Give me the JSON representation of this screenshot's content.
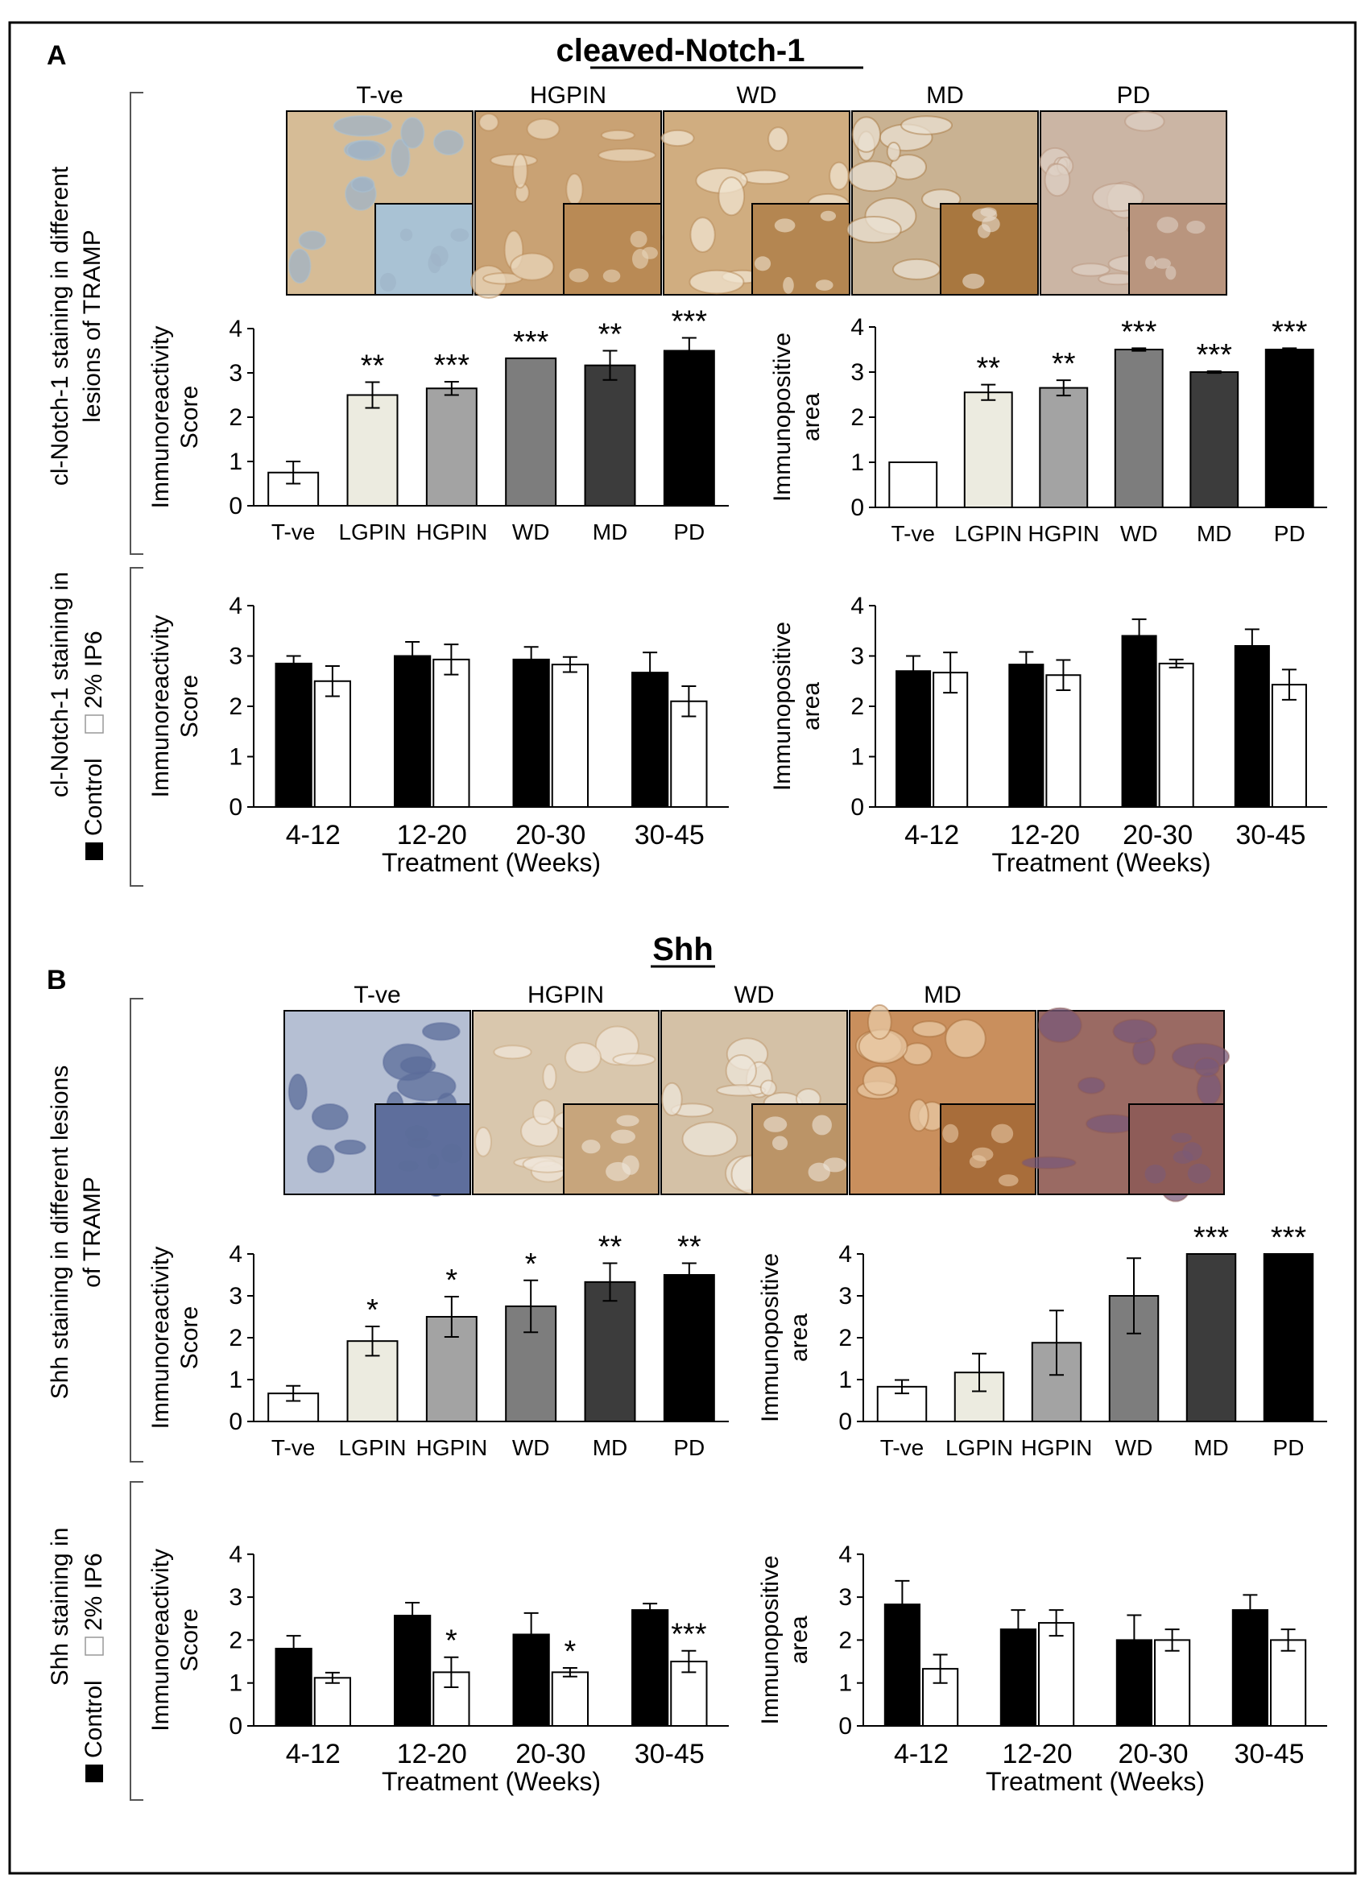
{
  "panel_a": {
    "letter": "A",
    "title": "cleaved-Notch-1",
    "side_label_top": [
      "cl-Notch-1 staining in different",
      "lesions of TRAMP"
    ],
    "side_label_bottom": [
      "cl-Notch-1 staining in",
      "Control",
      "2% IP6"
    ],
    "micrographs": [
      {
        "label": "T-ve",
        "base": "#d6bc96",
        "accent": "#9fb3c6",
        "inset": "#a9c2d4"
      },
      {
        "label": "HGPIN",
        "base": "#c9a274",
        "accent": "#e8d6bb",
        "inset": "#b98a55"
      },
      {
        "label": "WD",
        "base": "#d0ad80",
        "accent": "#f0e4d0",
        "inset": "#b48651"
      },
      {
        "label": "MD",
        "base": "#c9b292",
        "accent": "#e9e0d2",
        "inset": "#a8773f"
      },
      {
        "label": "PD",
        "base": "#cbb5a4",
        "accent": "#ddd0c4",
        "inset": "#b9957e"
      }
    ]
  },
  "panel_b": {
    "letter": "B",
    "title": "Shh",
    "side_label_top": [
      "Shh staining in different lesions",
      "of TRAMP"
    ],
    "side_label_bottom": [
      "Shh staining in",
      "Control",
      "2% IP6"
    ],
    "micrographs": [
      {
        "label": "T-ve",
        "base": "#b5bfd3",
        "accent": "#5b6c9a",
        "inset": "#5e6e9c"
      },
      {
        "label": "HGPIN",
        "base": "#d9c7ad",
        "accent": "#efe6da",
        "inset": "#c7a57c"
      },
      {
        "label": "WD",
        "base": "#d4c1a6",
        "accent": "#eee6da",
        "inset": "#bb9467"
      },
      {
        "label": "MD",
        "base": "#c98f5d",
        "accent": "#e8c9a6",
        "inset": "#a86d3a"
      },
      {
        "label": "",
        "base": "#9a6a63",
        "accent": "#7a5a78",
        "inset": "#8e5c58"
      }
    ]
  },
  "chart_data": [
    {
      "type": "bar",
      "id": "A1",
      "ylabel": [
        "Immunoreactivity",
        "Score"
      ],
      "categories": [
        "T-ve",
        "LGPIN",
        "HGPIN",
        "WD",
        "MD",
        "PD"
      ],
      "values": [
        0.75,
        2.5,
        2.65,
        3.33,
        3.17,
        3.5
      ],
      "errors": [
        0.25,
        0.29,
        0.15,
        0.0,
        0.33,
        0.29
      ],
      "significance": [
        "",
        "**",
        "***",
        "***",
        "**",
        "***"
      ],
      "colors": [
        "#ffffff",
        "#ecebe0",
        "#a3a3a3",
        "#7d7d7d",
        "#3c3c3c",
        "#000000"
      ],
      "ylim": [
        0,
        4
      ],
      "yticks": [
        "0",
        "1",
        "2",
        "3",
        "4"
      ]
    },
    {
      "type": "bar",
      "id": "A2",
      "ylabel": [
        "Immunopositive",
        "area"
      ],
      "categories": [
        "T-ve",
        "LGPIN",
        "HGPIN",
        "WD",
        "MD",
        "PD"
      ],
      "values": [
        1.0,
        2.55,
        2.65,
        3.5,
        3.0,
        3.5
      ],
      "errors": [
        0.0,
        0.17,
        0.17,
        0.03,
        0.02,
        0.03
      ],
      "significance": [
        "",
        "**",
        "**",
        "***",
        "***",
        "***"
      ],
      "colors": [
        "#ffffff",
        "#ecebe0",
        "#a3a3a3",
        "#7d7d7d",
        "#3c3c3c",
        "#000000"
      ],
      "ylim": [
        0,
        4
      ],
      "yticks": [
        "0",
        "1",
        "2",
        "3",
        "4"
      ]
    },
    {
      "type": "bar",
      "id": "A3",
      "ylabel": [
        "Immunoreactivity",
        "Score"
      ],
      "xlabel": "Treatment (Weeks)",
      "categories": [
        "4-12",
        "12-20",
        "20-30",
        "30-45"
      ],
      "series": [
        {
          "name": "Control",
          "color": "#000000",
          "values": [
            2.85,
            3.0,
            2.93,
            2.67
          ],
          "errors": [
            0.15,
            0.28,
            0.25,
            0.4
          ],
          "significance": [
            "",
            "",
            "",
            ""
          ]
        },
        {
          "name": "2% IP6",
          "color": "#ffffff",
          "values": [
            2.5,
            2.93,
            2.83,
            2.1
          ],
          "errors": [
            0.3,
            0.3,
            0.15,
            0.3
          ],
          "significance": [
            "",
            "",
            "",
            ""
          ]
        }
      ],
      "ylim": [
        0,
        4
      ],
      "yticks": [
        "0",
        "1",
        "2",
        "3",
        "4"
      ]
    },
    {
      "type": "bar",
      "id": "A4",
      "ylabel": [
        "Immunopositive",
        "area"
      ],
      "xlabel": "Treatment (Weeks)",
      "categories": [
        "4-12",
        "12-20",
        "20-30",
        "30-45"
      ],
      "series": [
        {
          "name": "Control",
          "color": "#000000",
          "values": [
            2.7,
            2.83,
            3.4,
            3.2
          ],
          "errors": [
            0.3,
            0.25,
            0.33,
            0.33
          ],
          "significance": [
            "",
            "",
            "",
            ""
          ]
        },
        {
          "name": "2% IP6",
          "color": "#ffffff",
          "values": [
            2.67,
            2.62,
            2.85,
            2.43
          ],
          "errors": [
            0.4,
            0.3,
            0.08,
            0.3
          ],
          "significance": [
            "",
            "",
            "",
            ""
          ]
        }
      ],
      "ylim": [
        0,
        4
      ],
      "yticks": [
        "0",
        "1",
        "2",
        "3",
        "4"
      ]
    },
    {
      "type": "bar",
      "id": "B1",
      "ylabel": [
        "Immunoreactivity",
        "Score"
      ],
      "categories": [
        "T-ve",
        "LGPIN",
        "HGPIN",
        "WD",
        "MD",
        "PD"
      ],
      "values": [
        0.67,
        1.92,
        2.5,
        2.75,
        3.33,
        3.5
      ],
      "errors": [
        0.18,
        0.35,
        0.48,
        0.62,
        0.45,
        0.28
      ],
      "significance": [
        "",
        "*",
        "*",
        "*",
        "**",
        "**"
      ],
      "colors": [
        "#ffffff",
        "#ecebe0",
        "#a3a3a3",
        "#7d7d7d",
        "#3c3c3c",
        "#000000"
      ],
      "ylim": [
        0,
        4
      ],
      "yticks": [
        "0",
        "1",
        "2",
        "3",
        "4"
      ]
    },
    {
      "type": "bar",
      "id": "B2",
      "ylabel": [
        "Immunopositive",
        "area"
      ],
      "categories": [
        "T-ve",
        "LGPIN",
        "HGPIN",
        "WD",
        "MD",
        "PD"
      ],
      "values": [
        0.83,
        1.17,
        1.88,
        3.0,
        4.0,
        4.0
      ],
      "errors": [
        0.16,
        0.45,
        0.77,
        0.9,
        0.0,
        0.0
      ],
      "significance": [
        "",
        "",
        "",
        "",
        "***",
        "***"
      ],
      "colors": [
        "#ffffff",
        "#ecebe0",
        "#a3a3a3",
        "#7d7d7d",
        "#3c3c3c",
        "#000000"
      ],
      "ylim": [
        0,
        4
      ],
      "yticks": [
        "0",
        "1",
        "2",
        "3",
        "4"
      ]
    },
    {
      "type": "bar",
      "id": "B3",
      "ylabel": [
        "Immunoreactivity",
        "Score"
      ],
      "xlabel": "Treatment (Weeks)",
      "categories": [
        "4-12",
        "12-20",
        "20-30",
        "30-45"
      ],
      "series": [
        {
          "name": "Control",
          "color": "#000000",
          "values": [
            1.8,
            2.57,
            2.13,
            2.7
          ],
          "errors": [
            0.3,
            0.3,
            0.5,
            0.15
          ],
          "significance": [
            "",
            "",
            "",
            ""
          ]
        },
        {
          "name": "2% IP6",
          "color": "#ffffff",
          "values": [
            1.12,
            1.25,
            1.25,
            1.5
          ],
          "errors": [
            0.12,
            0.35,
            0.1,
            0.25
          ],
          "significance": [
            "",
            "*",
            "*",
            "***"
          ]
        }
      ],
      "ylim": [
        0,
        4
      ],
      "yticks": [
        "0",
        "1",
        "2",
        "3",
        "4"
      ]
    },
    {
      "type": "bar",
      "id": "B4",
      "ylabel": [
        "Immunopositive",
        "area"
      ],
      "xlabel": "Treatment (Weeks)",
      "categories": [
        "4-12",
        "12-20",
        "20-30",
        "30-45"
      ],
      "series": [
        {
          "name": "Control",
          "color": "#000000",
          "values": [
            2.83,
            2.25,
            2.0,
            2.7
          ],
          "errors": [
            0.55,
            0.45,
            0.58,
            0.35
          ],
          "significance": [
            "",
            "",
            "",
            ""
          ]
        },
        {
          "name": "2% IP6",
          "color": "#ffffff",
          "values": [
            1.33,
            2.4,
            2.0,
            2.0
          ],
          "errors": [
            0.33,
            0.3,
            0.25,
            0.25
          ],
          "significance": [
            "",
            "",
            "",
            ""
          ]
        }
      ],
      "ylim": [
        0,
        4
      ],
      "yticks": [
        "0",
        "1",
        "2",
        "3",
        "4"
      ]
    }
  ]
}
